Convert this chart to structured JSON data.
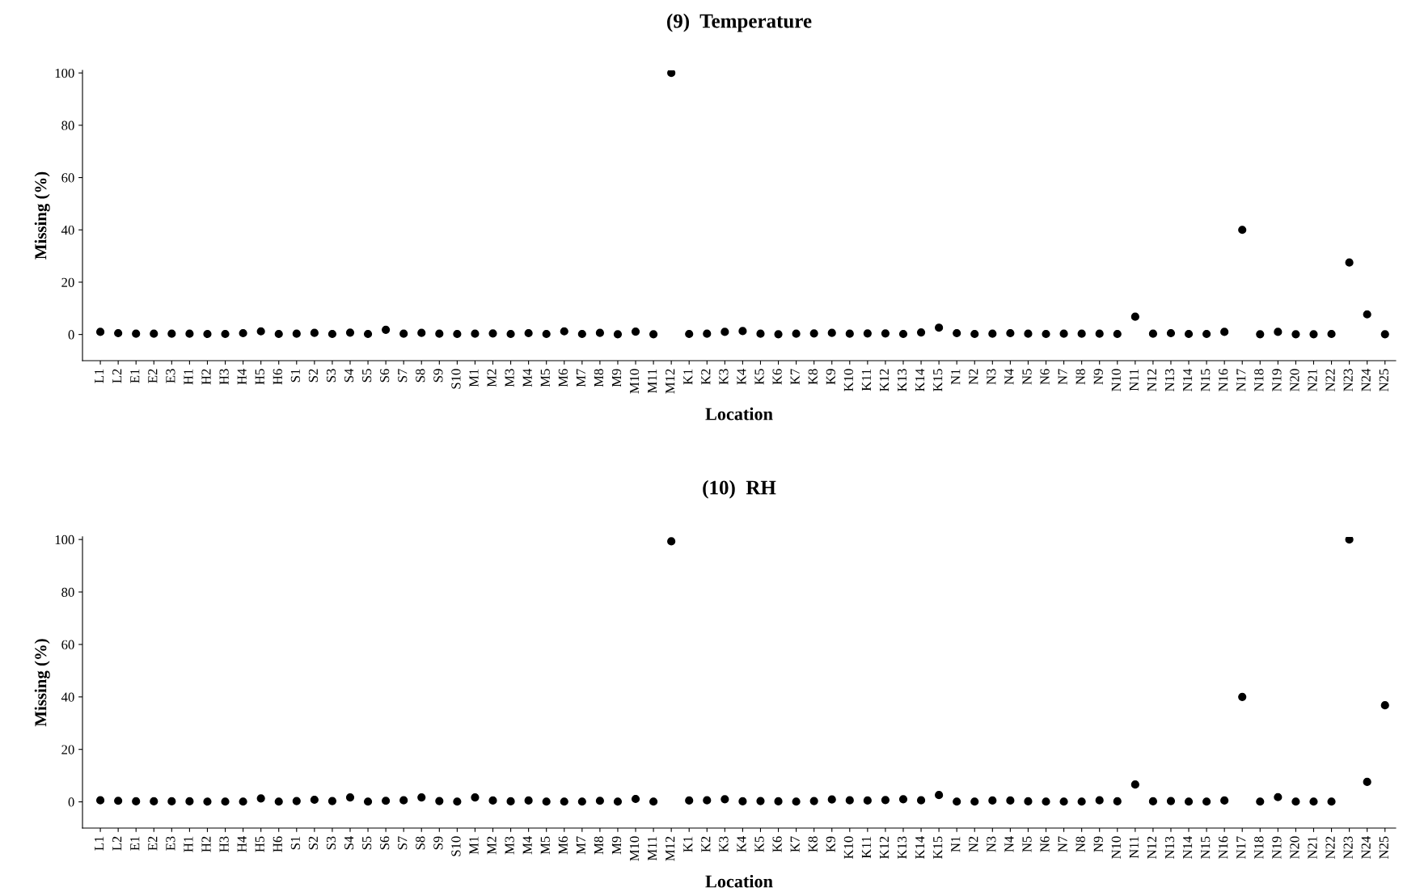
{
  "chart_data": [
    {
      "type": "scatter",
      "title": "(9)  Temperature",
      "xlabel": "Location",
      "ylabel": "Missing (%)",
      "marker": "circle",
      "grid": false,
      "legend": false,
      "categories": [
        "L1",
        "L2",
        "E1",
        "E2",
        "E3",
        "H1",
        "H2",
        "H3",
        "H4",
        "H5",
        "H6",
        "S1",
        "S2",
        "S3",
        "S4",
        "S5",
        "S6",
        "S7",
        "S8",
        "S9",
        "S10",
        "M1",
        "M2",
        "M3",
        "M4",
        "M5",
        "M6",
        "M7",
        "M8",
        "M9",
        "M10",
        "M11",
        "M12",
        "K1",
        "K2",
        "K3",
        "K4",
        "K5",
        "K6",
        "K7",
        "K8",
        "K9",
        "K10",
        "K11",
        "K12",
        "K13",
        "K14",
        "K15",
        "N1",
        "N2",
        "N3",
        "N4",
        "N5",
        "N6",
        "N7",
        "N8",
        "N9",
        "N10",
        "N11",
        "N12",
        "N13",
        "N14",
        "N15",
        "N16",
        "N17",
        "N18",
        "N19",
        "N20",
        "N21",
        "N22",
        "N23",
        "N24",
        "N25"
      ],
      "series": [
        {
          "color": "#000000",
          "values": [
            1,
            0.5,
            0.3,
            0.3,
            0.3,
            0.3,
            0.2,
            0.2,
            0.5,
            1.2,
            0.2,
            0.3,
            0.6,
            0.2,
            0.7,
            0.2,
            1.8,
            0.3,
            0.6,
            0.3,
            0.2,
            0.3,
            0.4,
            0.2,
            0.5,
            0.2,
            1.2,
            0.2,
            0.6,
            0.1,
            1.1,
            0.1,
            100,
            0.2,
            0.3,
            1,
            1.3,
            0.3,
            0.1,
            0.3,
            0.4,
            0.6,
            0.3,
            0.4,
            0.4,
            0.2,
            0.8,
            2.6,
            0.5,
            0.2,
            0.3,
            0.5,
            0.3,
            0.2,
            0.3,
            0.3,
            0.3,
            0.2,
            6.8,
            0.3,
            0.5,
            0.2,
            0.2,
            1,
            40,
            0.1,
            1,
            0.1,
            0.1,
            0.2,
            27.5,
            7.7,
            0.1
          ]
        }
      ],
      "ylim": [
        -10,
        101
      ],
      "yticks": [
        0,
        20,
        40,
        60,
        80,
        100
      ]
    },
    {
      "type": "scatter",
      "title": "(10)  RH",
      "xlabel": "Location",
      "ylabel": "Missing (%)",
      "marker": "circle",
      "grid": false,
      "legend": false,
      "categories": [
        "L1",
        "L2",
        "E1",
        "E2",
        "E3",
        "H1",
        "H2",
        "H3",
        "H4",
        "H5",
        "H6",
        "S1",
        "S2",
        "S3",
        "S4",
        "S5",
        "S6",
        "S7",
        "S8",
        "S9",
        "S10",
        "M1",
        "M2",
        "M3",
        "M4",
        "M5",
        "M6",
        "M7",
        "M8",
        "M9",
        "M10",
        "M11",
        "M12",
        "K1",
        "K2",
        "K3",
        "K4",
        "K5",
        "K6",
        "K7",
        "K8",
        "K9",
        "K10",
        "K11",
        "K12",
        "K13",
        "K14",
        "K15",
        "N1",
        "N2",
        "N3",
        "N4",
        "N5",
        "N6",
        "N7",
        "N8",
        "N9",
        "N10",
        "N11",
        "N12",
        "N13",
        "N14",
        "N15",
        "N16",
        "N17",
        "N18",
        "N19",
        "N20",
        "N21",
        "N22",
        "N23",
        "N24",
        "N25"
      ],
      "series": [
        {
          "color": "#000000",
          "values": [
            0.6,
            0.4,
            0.2,
            0.2,
            0.2,
            0.2,
            0.1,
            0.1,
            0.1,
            1.3,
            0.1,
            0.3,
            0.8,
            0.3,
            1.7,
            0.1,
            0.4,
            0.6,
            1.7,
            0.3,
            0.1,
            1.7,
            0.5,
            0.2,
            0.5,
            0.1,
            0.1,
            0.1,
            0.4,
            0.1,
            1.1,
            0.1,
            99.3,
            0.5,
            0.6,
            1,
            0.2,
            0.3,
            0.2,
            0.1,
            0.3,
            0.9,
            0.6,
            0.5,
            0.7,
            1,
            0.6,
            2.6,
            0.1,
            0.1,
            0.5,
            0.5,
            0.2,
            0.1,
            0.1,
            0.1,
            0.6,
            0.2,
            6.6,
            0.2,
            0.3,
            0.1,
            0.1,
            0.5,
            40,
            0.1,
            1.8,
            0.1,
            0.1,
            0.1,
            100,
            7.6,
            36.8
          ]
        }
      ],
      "ylim": [
        -10,
        101
      ],
      "yticks": [
        0,
        20,
        40,
        60,
        80,
        100
      ]
    }
  ]
}
